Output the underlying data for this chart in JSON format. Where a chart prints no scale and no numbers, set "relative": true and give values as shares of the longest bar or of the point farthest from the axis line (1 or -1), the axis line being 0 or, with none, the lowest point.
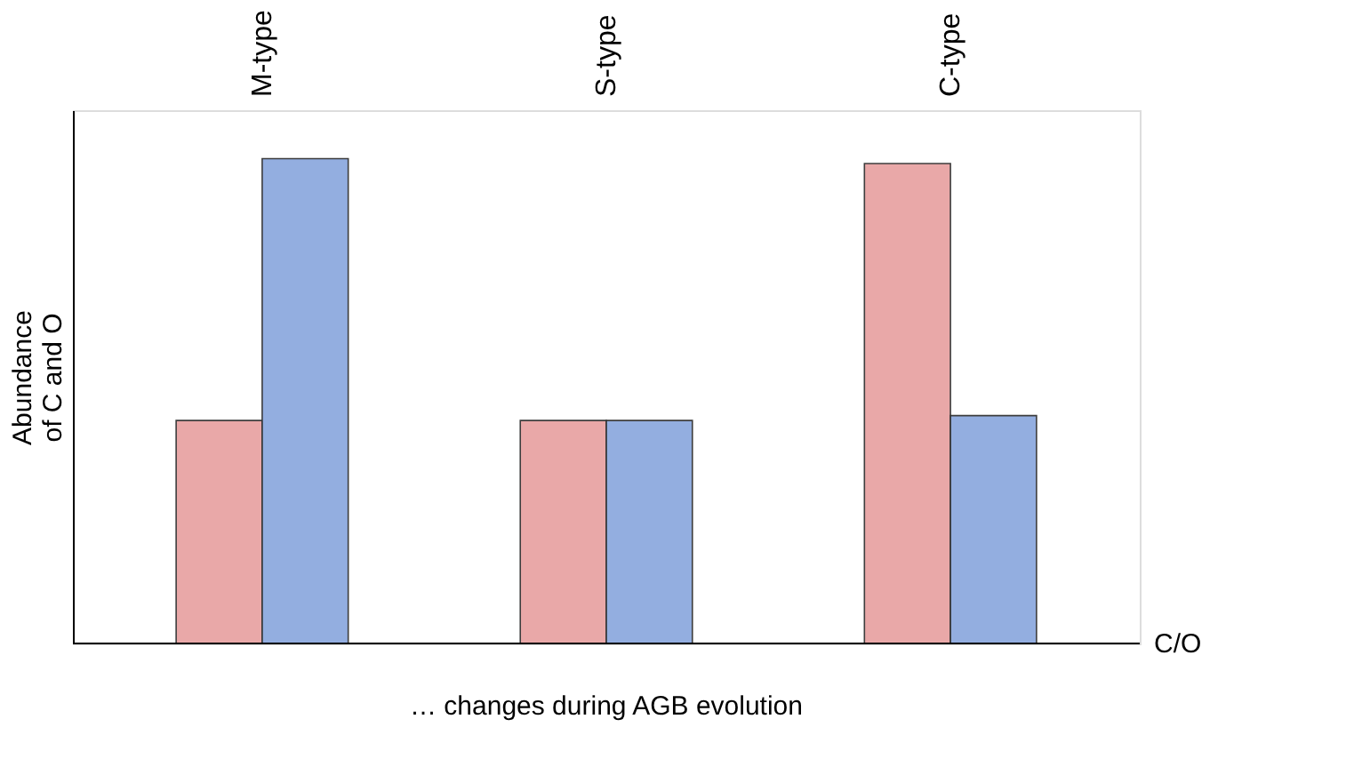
{
  "chart_data": {
    "type": "bar",
    "relative": true,
    "categories": [
      "M-type",
      "S-type",
      "C-type"
    ],
    "xlabel": "C/O",
    "ylabel": "Abundance of C and O",
    "annotations": [
      "… changes during AGB evolution"
    ],
    "series": [
      {
        "color": "#e8a4a4",
        "values": [
          0.46,
          0.46,
          0.99
        ]
      },
      {
        "color": "#8eaadf",
        "values": [
          1,
          0.46,
          0.47
        ]
      }
    ],
    "grid": false,
    "legend": false
  }
}
